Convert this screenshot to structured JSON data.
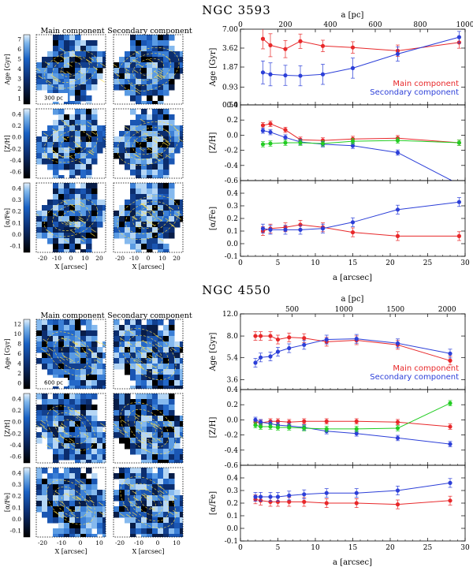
{
  "galaxies": [
    {
      "title": "NGC 3593",
      "map_titles": [
        "Main component",
        "Secondary component"
      ],
      "map_rows": [
        {
          "label": "Age [Gyr]",
          "ticks": [
            "1",
            "2",
            "3",
            "4",
            "5",
            "6",
            "7"
          ]
        },
        {
          "label": "[Z/H]",
          "ticks": [
            "-0.6",
            "-0.4",
            "-0.2",
            "0.0",
            "0.2",
            "0.4"
          ]
        },
        {
          "label": "[α/Fe]",
          "ticks": [
            "-0.1",
            "0.0",
            "0.1",
            "0.2",
            "0.3",
            "0.4"
          ]
        }
      ],
      "scale_bar": "300 pc",
      "map_xticks": [
        "-20",
        "-10",
        "0",
        "10",
        "20"
      ],
      "map_xlabel": "X [arcsec]",
      "top_axis_label": "a [pc]",
      "top_ticks": [
        "0",
        "200",
        "400",
        "600",
        "800",
        "1000"
      ],
      "bottom_xlabel": "a [arcsec]",
      "xticks": [
        "0",
        "5",
        "10",
        "15",
        "20",
        "25",
        "30"
      ],
      "legend": [
        "Main component",
        "Secondary component"
      ],
      "panel_labels": [
        "Age [Gyr]",
        "[Z/H]",
        "[α/Fe]"
      ],
      "panel_ticks": [
        [
          "0.50",
          "0.93",
          "1.87",
          "3.62",
          "7.00"
        ],
        [
          "-0.6",
          "-0.4",
          "-0.2",
          "0.0",
          "0.2",
          "0.4"
        ],
        [
          "-0.1",
          "0.0",
          "0.1",
          "0.2",
          "0.3",
          "0.4"
        ]
      ]
    },
    {
      "title": "NGC 4550",
      "map_titles": [
        "Main component",
        "Secondary component"
      ],
      "map_rows": [
        {
          "label": "Age [Gyr]",
          "ticks": [
            "0",
            "2",
            "4",
            "6",
            "8",
            "10",
            "12"
          ]
        },
        {
          "label": "[Z/H]",
          "ticks": [
            "-0.6",
            "-0.4",
            "-0.2",
            "0.0",
            "0.2",
            "0.4"
          ]
        },
        {
          "label": "[α/Fe]",
          "ticks": [
            "-0.1",
            "0.0",
            "0.1",
            "0.2",
            "0.3",
            "0.4"
          ]
        }
      ],
      "scale_bar": "600 pc",
      "map_xticks": [
        "-20",
        "-10",
        "0",
        "10"
      ],
      "map_xlabel": "X [arcsec]",
      "top_axis_label": "a [pc]",
      "top_ticks": [
        "500",
        "1000",
        "1500",
        "2000"
      ],
      "bottom_xlabel": "a [arcsec]",
      "xticks": [
        "0",
        "5",
        "10",
        "15",
        "20",
        "25",
        "30"
      ],
      "legend": [
        "Main component",
        "Secondary component"
      ],
      "panel_labels": [
        "Age [Gyr]",
        "[Z/H]",
        "[α/Fe]"
      ],
      "panel_ticks": [
        [
          "3.6",
          "5.4",
          "8.0",
          "12.0"
        ],
        [
          "-0.6",
          "-0.4",
          "-0.2",
          "0.0",
          "0.2",
          "0.4"
        ],
        [
          "-0.1",
          "0.0",
          "0.1",
          "0.2",
          "0.3",
          "0.4"
        ]
      ]
    }
  ],
  "colors": {
    "main": "#e8282a",
    "secondary": "#2c3fd8",
    "green": "#22cc22"
  },
  "chart_data": [
    {
      "type": "line",
      "title": "NGC 3593",
      "xlabel": "a [arcsec]",
      "ylabel": "Age [Gyr]",
      "xlim": [
        0,
        30
      ],
      "ylim": [
        0.5,
        7.0
      ],
      "yscale": "log",
      "series": [
        {
          "name": "Main component",
          "x": [
            3,
            4,
            6,
            8,
            11,
            15,
            21,
            29.2
          ],
          "y": [
            5.0,
            4.0,
            3.5,
            4.6,
            3.9,
            3.7,
            3.3,
            4.4
          ],
          "err": [
            0.35,
            0.4,
            0.3,
            0.25,
            0.2,
            0.2,
            0.2,
            0.2
          ]
        },
        {
          "name": "Secondary component",
          "x": [
            3,
            4,
            6,
            8,
            11,
            15,
            21,
            29.2
          ],
          "y": [
            1.55,
            1.45,
            1.4,
            1.38,
            1.45,
            1.8,
            2.95,
            5.3
          ],
          "err": [
            0.4,
            0.4,
            0.35,
            0.35,
            0.35,
            0.35,
            0.25,
            0.2
          ]
        }
      ]
    },
    {
      "type": "line",
      "title": "NGC 3593",
      "xlabel": "a [arcsec]",
      "ylabel": "[Z/H]",
      "xlim": [
        0,
        30
      ],
      "ylim": [
        -0.6,
        0.4
      ],
      "series": [
        {
          "name": "Main component",
          "x": [
            3,
            4,
            6,
            8,
            11,
            15,
            21,
            29.2
          ],
          "y": [
            0.13,
            0.15,
            0.07,
            -0.06,
            -0.07,
            -0.05,
            -0.04,
            -0.1
          ]
        },
        {
          "name": "Secondary component",
          "x": [
            3,
            4,
            6,
            8,
            11,
            15,
            21,
            29.2
          ],
          "y": [
            0.06,
            0.04,
            -0.03,
            -0.09,
            -0.12,
            -0.14,
            -0.23,
            -0.65
          ]
        },
        {
          "name": "",
          "x": [
            3,
            4,
            6,
            8,
            11,
            15,
            21,
            29.2
          ],
          "y": [
            -0.12,
            -0.11,
            -0.1,
            -0.1,
            -0.11,
            -0.08,
            -0.07,
            -0.1
          ]
        }
      ]
    },
    {
      "type": "line",
      "title": "NGC 3593",
      "xlabel": "a [arcsec]",
      "ylabel": "[α/Fe]",
      "xlim": [
        0,
        30
      ],
      "ylim": [
        -0.1,
        0.5
      ],
      "series": [
        {
          "name": "Main component",
          "x": [
            3,
            4,
            6,
            8,
            11,
            15,
            21,
            29.2
          ],
          "y": [
            0.1,
            0.12,
            0.13,
            0.15,
            0.13,
            0.09,
            0.06,
            0.06
          ]
        },
        {
          "name": "Secondary component",
          "x": [
            3,
            4,
            6,
            8,
            11,
            15,
            21,
            29.2
          ],
          "y": [
            0.12,
            0.11,
            0.11,
            0.11,
            0.12,
            0.17,
            0.27,
            0.33
          ]
        }
      ]
    },
    {
      "type": "line",
      "title": "NGC 4550",
      "xlabel": "a [arcsec]",
      "ylabel": "Age [Gyr]",
      "xlim": [
        0,
        30
      ],
      "ylim": [
        3.0,
        12.0
      ],
      "yscale": "log",
      "series": [
        {
          "name": "Main component",
          "x": [
            2,
            2.7,
            4,
            5,
            6.5,
            8.5,
            11.5,
            15.5,
            21,
            28
          ],
          "y": [
            8.0,
            8.0,
            8.0,
            7.5,
            7.8,
            7.7,
            7.2,
            7.4,
            6.8,
            5.1
          ]
        },
        {
          "name": "Secondary component",
          "x": [
            2,
            2.7,
            4,
            5,
            6.5,
            8.5,
            11.5,
            15.5,
            21,
            28
          ],
          "y": [
            4.9,
            5.4,
            5.5,
            6.0,
            6.4,
            6.8,
            7.5,
            7.6,
            7.0,
            5.8
          ]
        }
      ]
    },
    {
      "type": "line",
      "title": "NGC 4550",
      "xlabel": "a [arcsec]",
      "ylabel": "[Z/H]",
      "xlim": [
        0,
        30
      ],
      "ylim": [
        -0.6,
        0.4
      ],
      "series": [
        {
          "name": "Main component",
          "x": [
            2,
            2.7,
            4,
            5,
            6.5,
            8.5,
            11.5,
            15.5,
            21,
            28
          ],
          "y": [
            -0.03,
            -0.04,
            -0.02,
            -0.02,
            -0.03,
            -0.02,
            -0.02,
            -0.02,
            -0.03,
            -0.09
          ]
        },
        {
          "name": "Secondary component",
          "x": [
            2,
            2.7,
            4,
            5,
            6.5,
            8.5,
            11.5,
            15.5,
            21,
            28
          ],
          "y": [
            0.0,
            -0.03,
            -0.05,
            -0.07,
            -0.08,
            -0.1,
            -0.15,
            -0.18,
            -0.24,
            -0.32
          ]
        },
        {
          "name": "",
          "x": [
            2,
            2.7,
            4,
            5,
            6.5,
            8.5,
            11.5,
            15.5,
            21,
            28
          ],
          "y": [
            -0.07,
            -0.09,
            -0.09,
            -0.1,
            -0.1,
            -0.11,
            -0.12,
            -0.12,
            -0.11,
            0.22
          ]
        }
      ]
    },
    {
      "type": "line",
      "title": "NGC 4550",
      "xlabel": "a [arcsec]",
      "ylabel": "[α/Fe]",
      "xlim": [
        0,
        30
      ],
      "ylim": [
        -0.1,
        0.5
      ],
      "series": [
        {
          "name": "Main component",
          "x": [
            2,
            2.7,
            4,
            5,
            6.5,
            8.5,
            11.5,
            15.5,
            21,
            28
          ],
          "y": [
            0.23,
            0.22,
            0.21,
            0.21,
            0.21,
            0.21,
            0.2,
            0.2,
            0.19,
            0.22
          ]
        },
        {
          "name": "Secondary component",
          "x": [
            2,
            2.7,
            4,
            5,
            6.5,
            8.5,
            11.5,
            15.5,
            21,
            28
          ],
          "y": [
            0.25,
            0.25,
            0.25,
            0.25,
            0.26,
            0.27,
            0.28,
            0.28,
            0.3,
            0.36
          ]
        }
      ]
    }
  ]
}
